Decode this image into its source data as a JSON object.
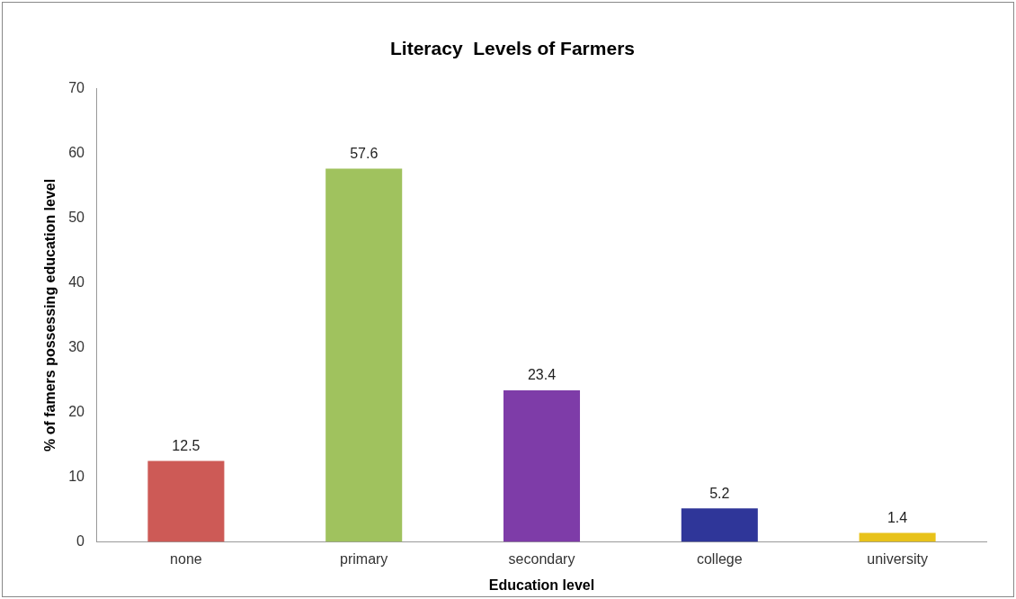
{
  "chart_data": {
    "type": "bar",
    "title": "Literacy  Levels of Farmers",
    "xlabel": "Education level",
    "ylabel": "% of famers possessing education level",
    "categories": [
      "none",
      "primary",
      "secondary",
      "college",
      "university"
    ],
    "values": [
      12.5,
      57.6,
      23.4,
      5.2,
      1.4
    ],
    "colors": [
      "#cd5a56",
      "#a0c25e",
      "#7e3ca8",
      "#2f3699",
      "#e8c21a"
    ],
    "ylim": [
      0,
      70
    ],
    "yticks": [
      0,
      10,
      20,
      30,
      40,
      50,
      60,
      70
    ],
    "grid": false,
    "legend": false,
    "data_labels": true
  }
}
